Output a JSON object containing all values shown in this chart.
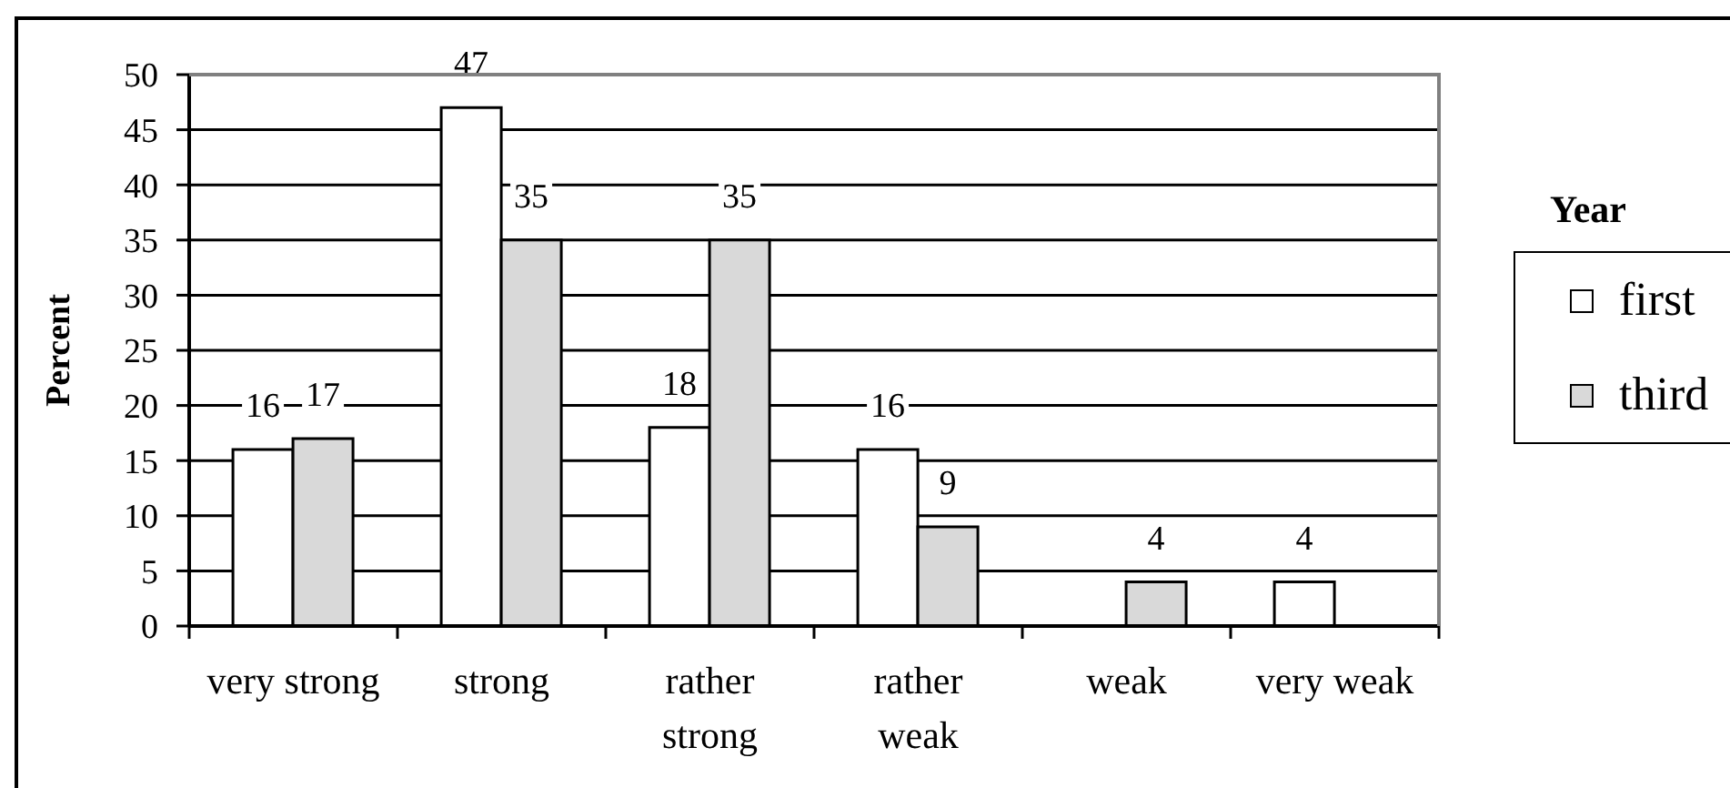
{
  "chart_data": {
    "type": "bar",
    "categories": [
      "very strong",
      "strong",
      "rather strong",
      "rather weak",
      "weak",
      "very weak"
    ],
    "series": [
      {
        "name": "first",
        "color": "#ffffff",
        "values": [
          16,
          47,
          18,
          16,
          null,
          4
        ]
      },
      {
        "name": "third",
        "color": "#d9d9d9",
        "values": [
          17,
          35,
          35,
          9,
          4,
          null
        ]
      }
    ],
    "ylabel": "Percent",
    "legend_title": "Year",
    "ylim": [
      0,
      50
    ],
    "yticks": [
      0,
      5,
      10,
      15,
      20,
      25,
      30,
      35,
      40,
      45,
      50
    ],
    "grid": "y",
    "legend": "right",
    "data_labels": true
  }
}
